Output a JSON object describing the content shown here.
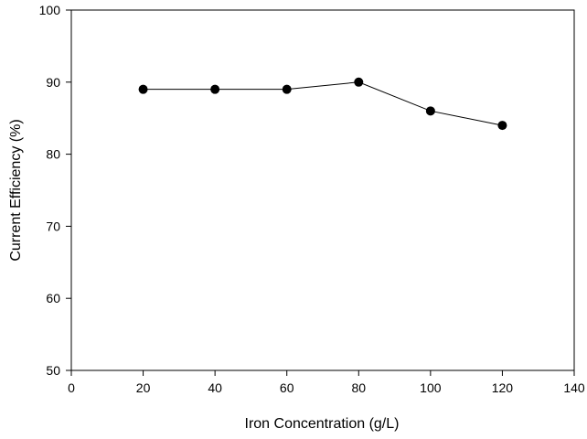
{
  "chart_data": {
    "type": "line",
    "title": "",
    "xlabel": "Iron Concentration (g/L)",
    "ylabel": "Current Efficiency (%)",
    "xlim": [
      0,
      140
    ],
    "ylim": [
      50,
      100
    ],
    "xticks": [
      0,
      20,
      40,
      60,
      80,
      100,
      120,
      140
    ],
    "yticks": [
      50,
      60,
      70,
      80,
      90,
      100
    ],
    "grid": false,
    "legend": "none",
    "series": [
      {
        "x": [
          20,
          40,
          60,
          80,
          100,
          120
        ],
        "y": [
          89,
          89,
          89,
          90,
          86,
          84
        ],
        "marker": "filled-circle",
        "color": "#000000"
      }
    ]
  }
}
